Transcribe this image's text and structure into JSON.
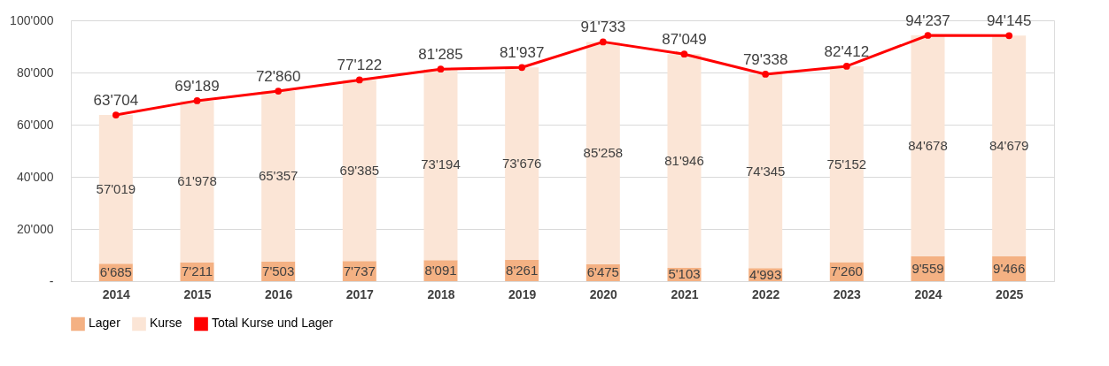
{
  "chart_data": {
    "type": "bar",
    "stacked": true,
    "categories": [
      "2014",
      "2015",
      "2016",
      "2017",
      "2018",
      "2019",
      "2020",
      "2021",
      "2022",
      "2023",
      "2024",
      "2025"
    ],
    "series": [
      {
        "name": "Lager",
        "color": "#f4b183",
        "values": [
          6685,
          7211,
          7503,
          7737,
          8091,
          8261,
          6475,
          5103,
          4993,
          7260,
          9559,
          9466
        ],
        "value_labels": [
          "6'685",
          "7'211",
          "7'503",
          "7'737",
          "8'091",
          "8'261",
          "6'475",
          "5'103",
          "4'993",
          "7'260",
          "9'559",
          "9'466"
        ]
      },
      {
        "name": "Kurse",
        "color": "#fbe5d6",
        "values": [
          57019,
          61978,
          65357,
          69385,
          73194,
          73676,
          85258,
          81946,
          74345,
          75152,
          84678,
          84679
        ],
        "value_labels": [
          "57'019",
          "61'978",
          "65'357",
          "69'385",
          "73'194",
          "73'676",
          "85'258",
          "81'946",
          "74'345",
          "75'152",
          "84'678",
          "84'679"
        ]
      },
      {
        "name": "Total Kurse und Lager",
        "type": "line",
        "color": "#ff0000",
        "marker": "circle",
        "values": [
          63704,
          69189,
          72860,
          77122,
          81285,
          81937,
          91733,
          87049,
          79338,
          82412,
          94237,
          94145
        ],
        "value_labels": [
          "63'704",
          "69'189",
          "72'860",
          "77'122",
          "81'285",
          "81'937",
          "91'733",
          "87'049",
          "79'338",
          "82'412",
          "94'237",
          "94'145"
        ]
      }
    ],
    "ylim": [
      0,
      100000
    ],
    "yticks": [
      {
        "value": 0,
        "label": "-"
      },
      {
        "value": 20000,
        "label": "20'000"
      },
      {
        "value": 40000,
        "label": "40'000"
      },
      {
        "value": 60000,
        "label": "60'000"
      },
      {
        "value": 80000,
        "label": "80'000"
      },
      {
        "value": 100000,
        "label": "100'000"
      }
    ],
    "grid": "y",
    "legend": "bottom"
  }
}
